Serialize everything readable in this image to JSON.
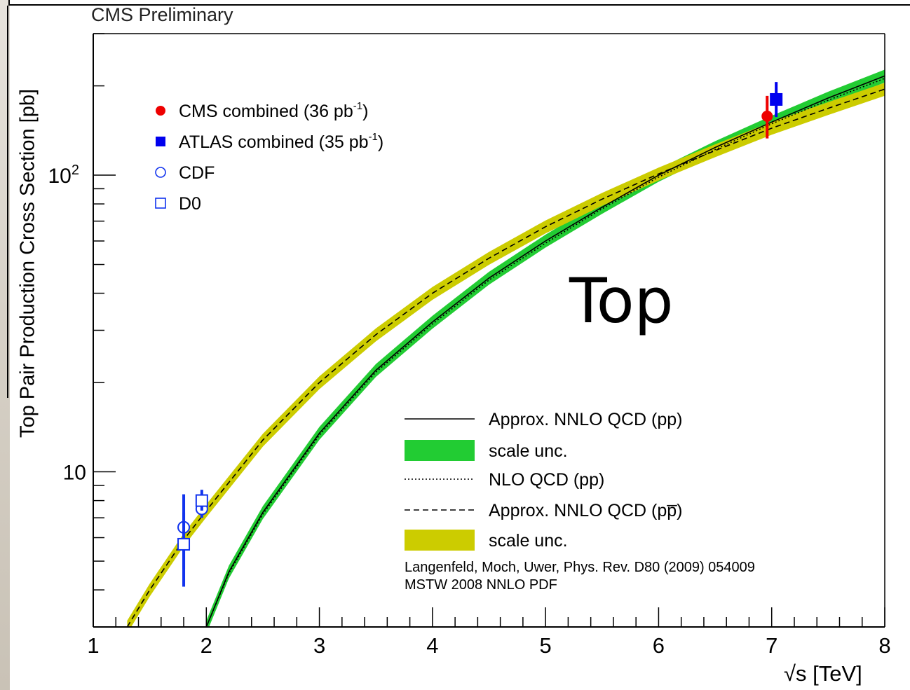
{
  "header": {
    "label": "CMS Preliminary"
  },
  "annotation": "Top",
  "colors": {
    "green_band": "#22cc33",
    "yellow_band": "#cccc00",
    "cms": "#ee0000",
    "atlas": "#0000ee",
    "tevatron": "#1133ee"
  },
  "chart_data": {
    "type": "line",
    "title": "",
    "xlabel": "√s [TeV]",
    "ylabel": "Top Pair Production Cross Section [pb]",
    "xlim": [
      1,
      8
    ],
    "ylim": [
      3,
      300
    ],
    "y_scale": "log",
    "x_ticks": [
      "1",
      "2",
      "3",
      "4",
      "5",
      "6",
      "7",
      "8"
    ],
    "y_tick_labels": [
      {
        "value": 10,
        "base": "10",
        "sup": ""
      },
      {
        "value": 100,
        "base": "10",
        "sup": "2"
      }
    ],
    "series": [
      {
        "name": "Approx. NNLO QCD (pp)",
        "style": "solid",
        "band_label": "scale unc.",
        "x": [
          2.0,
          2.2,
          2.5,
          3.0,
          3.5,
          4.0,
          4.5,
          5.0,
          5.5,
          6.0,
          6.5,
          7.0,
          7.5,
          8.0
        ],
        "y": [
          3.0,
          4.6,
          7.3,
          13.5,
          22,
          32,
          45,
          60,
          78,
          100,
          124,
          151,
          182,
          216
        ],
        "band": 0.05
      },
      {
        "name": "NLO QCD (pp)",
        "style": "dotted",
        "x": [
          2.0,
          2.2,
          2.5,
          3.0,
          3.5,
          4.0,
          4.5,
          5.0,
          5.5,
          6.0,
          6.5,
          7.0,
          7.5,
          8.0
        ],
        "y": [
          3.0,
          4.55,
          7.2,
          13.3,
          21.7,
          31.5,
          44.3,
          59,
          77,
          98.5,
          122,
          149,
          179,
          212
        ]
      },
      {
        "name": "Approx. NNLO QCD (pp̅)",
        "style": "dashed",
        "band_label": "scale unc.",
        "x": [
          1.3,
          1.5,
          1.8,
          2.0,
          2.5,
          3.0,
          3.5,
          4.0,
          4.5,
          5.0,
          5.5,
          6.0,
          6.5,
          7.0,
          7.5,
          8.0
        ],
        "y": [
          3.0,
          4.0,
          5.9,
          7.4,
          12.8,
          20,
          29,
          40,
          52.5,
          67,
          83,
          101,
          121,
          144,
          168,
          195
        ],
        "band": 0.05
      }
    ],
    "measurements": [
      {
        "name": "CMS combined (36 pb⁻¹)",
        "marker": "filled-circle",
        "x": 6.96,
        "y": 158,
        "err_low": 25,
        "err_high": 27
      },
      {
        "name": "ATLAS combined (35 pb⁻¹)",
        "marker": "filled-square",
        "x": 7.04,
        "y": 180,
        "err_low": 23,
        "err_high": 26
      },
      {
        "name": "CDF",
        "marker": "open-circle",
        "x": 1.8,
        "y": 6.5,
        "err_low": 1.8,
        "err_high": 1.9
      },
      {
        "name": "CDF",
        "marker": "open-circle",
        "x": 1.96,
        "y": 7.5,
        "err_low": 0.5,
        "err_high": 0.5
      },
      {
        "name": "D0",
        "marker": "open-square",
        "x": 1.8,
        "y": 5.7,
        "err_low": 1.6,
        "err_high": 1.6
      },
      {
        "name": "D0",
        "marker": "open-square",
        "x": 1.96,
        "y": 8.0,
        "err_low": 0.6,
        "err_high": 0.7
      }
    ],
    "legend_markers": [
      {
        "marker": "filled-circle",
        "text": "CMS combined (36 pb",
        "sup": "-1",
        "tail": ")"
      },
      {
        "marker": "filled-square",
        "text": "ATLAS combined (35 pb",
        "sup": "-1",
        "tail": ")"
      },
      {
        "marker": "open-circle",
        "text": "CDF",
        "sup": "",
        "tail": ""
      },
      {
        "marker": "open-square",
        "text": "D0",
        "sup": "",
        "tail": ""
      }
    ],
    "legend_lines": [
      {
        "kind": "solid",
        "text": "Approx. NNLO QCD (pp)"
      },
      {
        "kind": "green-band",
        "text": "scale unc."
      },
      {
        "kind": "dotted",
        "text": "NLO QCD (pp)"
      },
      {
        "kind": "dashed",
        "text": "Approx. NNLO QCD (pp̅)"
      },
      {
        "kind": "yellow-band",
        "text": "scale unc."
      }
    ],
    "reference": [
      "Langenfeld, Moch, Uwer, Phys. Rev. D80 (2009) 054009",
      "MSTW 2008 NNLO PDF"
    ],
    "grid": false
  }
}
